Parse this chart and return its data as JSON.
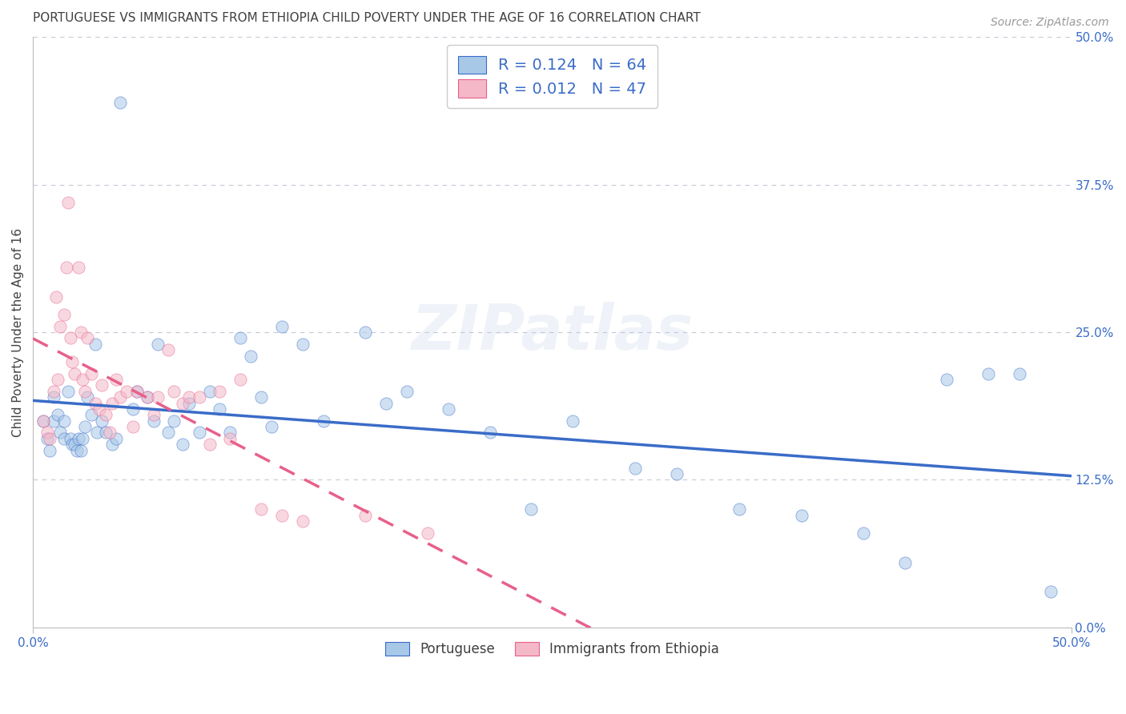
{
  "title": "PORTUGUESE VS IMMIGRANTS FROM ETHIOPIA CHILD POVERTY UNDER THE AGE OF 16 CORRELATION CHART",
  "source": "Source: ZipAtlas.com",
  "ylabel": "Child Poverty Under the Age of 16",
  "xlim": [
    0.0,
    0.5
  ],
  "ylim": [
    0.0,
    0.5
  ],
  "ytick_labels_right": [
    "50.0%",
    "37.5%",
    "25.0%",
    "12.5%",
    "0.0%"
  ],
  "ytick_positions": [
    0.5,
    0.375,
    0.25,
    0.125,
    0.0
  ],
  "R_portuguese": 0.124,
  "N_portuguese": 64,
  "R_ethiopia": 0.012,
  "N_ethiopia": 47,
  "color_portuguese": "#a8c8e8",
  "color_ethiopia": "#f4b8c8",
  "line_color_portuguese": "#3a6cc8",
  "line_color_ethiopia": "#e8608a",
  "background_color": "#ffffff",
  "grid_color": "#c8c8d8",
  "title_color": "#404040",
  "source_color": "#999999",
  "legend_label_portuguese": "Portuguese",
  "legend_label_ethiopia": "Immigrants from Ethiopia",
  "portuguese_x": [
    0.005,
    0.007,
    0.008,
    0.01,
    0.01,
    0.012,
    0.013,
    0.015,
    0.015,
    0.017,
    0.018,
    0.019,
    0.02,
    0.021,
    0.022,
    0.023,
    0.024,
    0.025,
    0.026,
    0.028,
    0.03,
    0.031,
    0.033,
    0.035,
    0.038,
    0.04,
    0.042,
    0.048,
    0.05,
    0.055,
    0.058,
    0.06,
    0.065,
    0.068,
    0.072,
    0.075,
    0.08,
    0.085,
    0.09,
    0.095,
    0.1,
    0.105,
    0.11,
    0.115,
    0.12,
    0.13,
    0.14,
    0.16,
    0.17,
    0.18,
    0.2,
    0.22,
    0.24,
    0.26,
    0.29,
    0.31,
    0.34,
    0.37,
    0.4,
    0.42,
    0.44,
    0.46,
    0.475,
    0.49
  ],
  "portuguese_y": [
    0.175,
    0.16,
    0.15,
    0.195,
    0.175,
    0.18,
    0.165,
    0.175,
    0.16,
    0.2,
    0.16,
    0.155,
    0.155,
    0.15,
    0.16,
    0.15,
    0.16,
    0.17,
    0.195,
    0.18,
    0.24,
    0.165,
    0.175,
    0.165,
    0.155,
    0.16,
    0.445,
    0.185,
    0.2,
    0.195,
    0.175,
    0.24,
    0.165,
    0.175,
    0.155,
    0.19,
    0.165,
    0.2,
    0.185,
    0.165,
    0.245,
    0.23,
    0.195,
    0.17,
    0.255,
    0.24,
    0.175,
    0.25,
    0.19,
    0.2,
    0.185,
    0.165,
    0.1,
    0.175,
    0.135,
    0.13,
    0.1,
    0.095,
    0.08,
    0.055,
    0.21,
    0.215,
    0.215,
    0.03
  ],
  "ethiopia_x": [
    0.005,
    0.007,
    0.008,
    0.01,
    0.011,
    0.012,
    0.013,
    0.015,
    0.016,
    0.017,
    0.018,
    0.019,
    0.02,
    0.022,
    0.023,
    0.024,
    0.025,
    0.026,
    0.028,
    0.03,
    0.032,
    0.033,
    0.035,
    0.037,
    0.038,
    0.04,
    0.042,
    0.045,
    0.048,
    0.05,
    0.055,
    0.058,
    0.06,
    0.065,
    0.068,
    0.072,
    0.075,
    0.08,
    0.085,
    0.09,
    0.095,
    0.1,
    0.11,
    0.12,
    0.13,
    0.16,
    0.19
  ],
  "ethiopia_y": [
    0.175,
    0.165,
    0.16,
    0.2,
    0.28,
    0.21,
    0.255,
    0.265,
    0.305,
    0.36,
    0.245,
    0.225,
    0.215,
    0.305,
    0.25,
    0.21,
    0.2,
    0.245,
    0.215,
    0.19,
    0.185,
    0.205,
    0.18,
    0.165,
    0.19,
    0.21,
    0.195,
    0.2,
    0.17,
    0.2,
    0.195,
    0.18,
    0.195,
    0.235,
    0.2,
    0.19,
    0.195,
    0.195,
    0.155,
    0.2,
    0.16,
    0.21,
    0.1,
    0.095,
    0.09,
    0.095,
    0.08
  ],
  "marker_size": 120,
  "marker_alpha": 0.55,
  "line_width": 2.5
}
